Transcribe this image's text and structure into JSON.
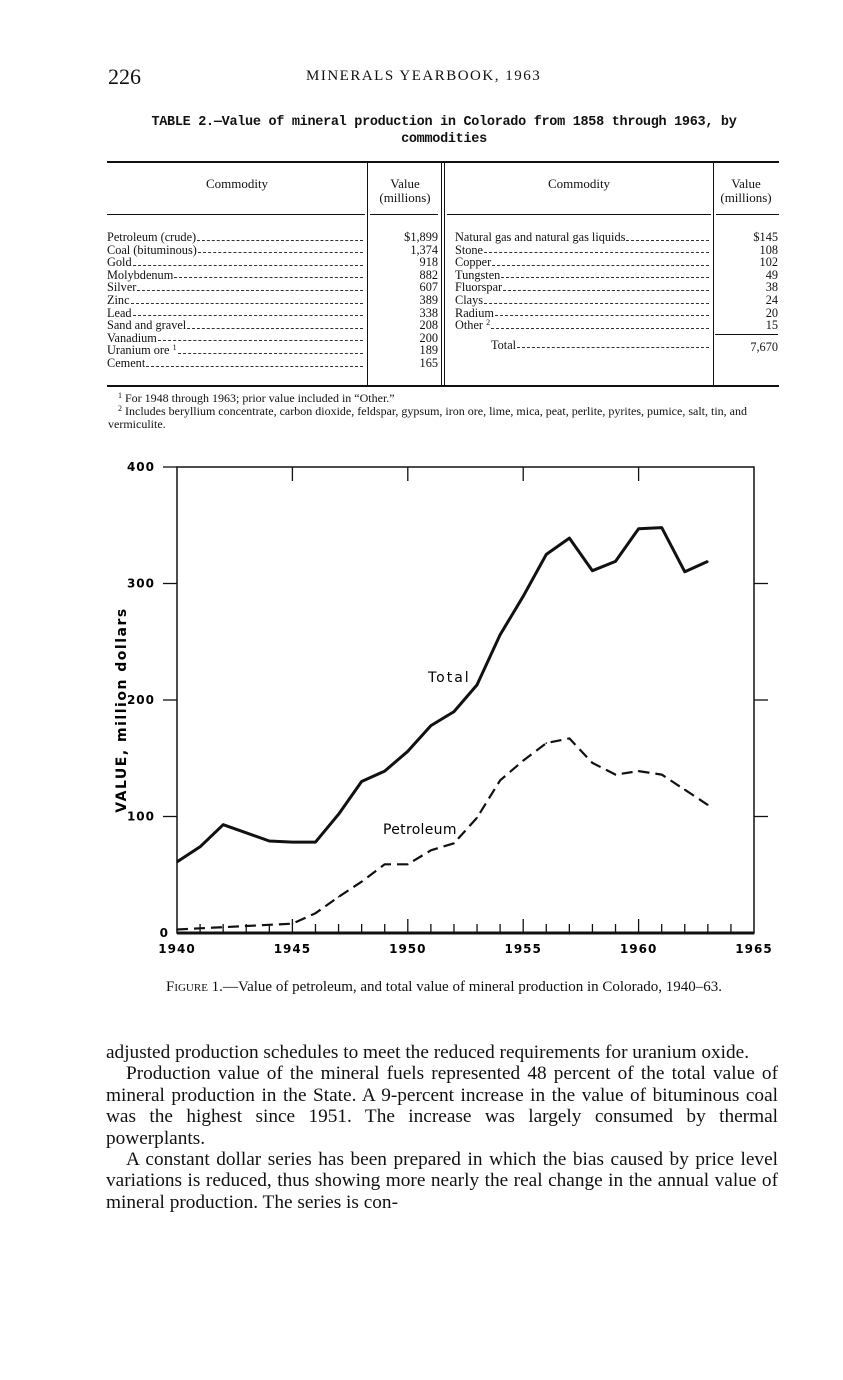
{
  "header": {
    "page_number": "226",
    "running_title": "MINERALS YEARBOOK, 1963"
  },
  "table": {
    "title": "TABLE 2.—Value of mineral production in Colorado from 1858 through 1963, by commodities",
    "col_commodity": "Commodity",
    "col_value_1": "Value",
    "col_value_2": "(millions)",
    "left_rows": [
      {
        "commodity": "Petroleum (crude)",
        "note": "",
        "value": "$1,899"
      },
      {
        "commodity": "Coal (bituminous)",
        "note": "",
        "value": "1,374"
      },
      {
        "commodity": "Gold",
        "note": "",
        "value": "918"
      },
      {
        "commodity": "Molybdenum",
        "note": "",
        "value": "882"
      },
      {
        "commodity": "Silver",
        "note": "",
        "value": "607"
      },
      {
        "commodity": "Zinc",
        "note": "",
        "value": "389"
      },
      {
        "commodity": "Lead",
        "note": "",
        "value": "338"
      },
      {
        "commodity": "Sand and gravel",
        "note": "",
        "value": "208"
      },
      {
        "commodity": "Vanadium",
        "note": "",
        "value": "200"
      },
      {
        "commodity": "Uranium ore",
        "note": "1",
        "value": "189"
      },
      {
        "commodity": "Cement",
        "note": "",
        "value": "165"
      }
    ],
    "right_rows": [
      {
        "commodity": "Natural gas and natural gas liquids",
        "note": "",
        "value": "$145"
      },
      {
        "commodity": "Stone",
        "note": "",
        "value": "108"
      },
      {
        "commodity": "Copper",
        "note": "",
        "value": "102"
      },
      {
        "commodity": "Tungsten",
        "note": "",
        "value": "49"
      },
      {
        "commodity": "Fluorspar",
        "note": "",
        "value": "38"
      },
      {
        "commodity": "Clays",
        "note": "",
        "value": "24"
      },
      {
        "commodity": "Radium",
        "note": "",
        "value": "20"
      },
      {
        "commodity": "Other",
        "note": "2",
        "value": "15"
      }
    ],
    "total_label": "Total",
    "total_value": "7,670",
    "footnotes": [
      {
        "mark": "1",
        "text": "For 1948 through 1963; prior value included in “Other.”"
      },
      {
        "mark": "2",
        "text": "Includes beryllium concentrate, carbon dioxide, feldspar, gypsum, iron ore, lime, mica, peat, perlite, pyrites, pumice, salt, tin, and vermiculite."
      }
    ]
  },
  "chart_data": {
    "type": "line",
    "title": "",
    "xlabel": "",
    "ylabel": "VALUE, million dollars",
    "xlim": [
      1940,
      1965
    ],
    "ylim": [
      0,
      400
    ],
    "x_ticks": [
      "1940",
      "1945",
      "1950",
      "1955",
      "1960",
      "1965"
    ],
    "y_ticks": [
      "0",
      "100",
      "200",
      "300",
      "400"
    ],
    "grid": false,
    "x": [
      1940,
      1941,
      1942,
      1943,
      1944,
      1945,
      1946,
      1947,
      1948,
      1949,
      1950,
      1951,
      1952,
      1953,
      1954,
      1955,
      1956,
      1957,
      1958,
      1959,
      1960,
      1961,
      1962,
      1963
    ],
    "series": [
      {
        "name": "Total",
        "style": "solid",
        "values": [
          61,
          74,
          93,
          86,
          79,
          78,
          78,
          102,
          130,
          139,
          156,
          178,
          190,
          213,
          256,
          289,
          325,
          339,
          311,
          319,
          347,
          348,
          310,
          319
        ]
      },
      {
        "name": "Petroleum",
        "style": "dashed",
        "values": [
          3,
          4,
          5,
          6,
          7,
          8,
          17,
          31,
          44,
          59,
          59,
          71,
          77,
          99,
          131,
          148,
          163,
          167,
          146,
          136,
          139,
          136,
          123,
          110
        ]
      }
    ]
  },
  "figure_caption": {
    "label": "Figure 1.",
    "text": "—Value of petroleum, and total value of mineral production in Colorado, 1940–63."
  },
  "body": {
    "paragraphs": [
      "adjusted production schedules to meet the reduced requirements for uranium oxide.",
      "Production value of the mineral fuels represented 48 percent of the total value of mineral production in the State. A 9-percent increase in the value of bituminous coal was the highest since 1951. The increase was largely consumed by thermal powerplants.",
      "A constant dollar series has been prepared in which the bias caused by price level variations is reduced, thus showing more nearly the real change in the annual value of mineral production. The series is con-"
    ]
  }
}
